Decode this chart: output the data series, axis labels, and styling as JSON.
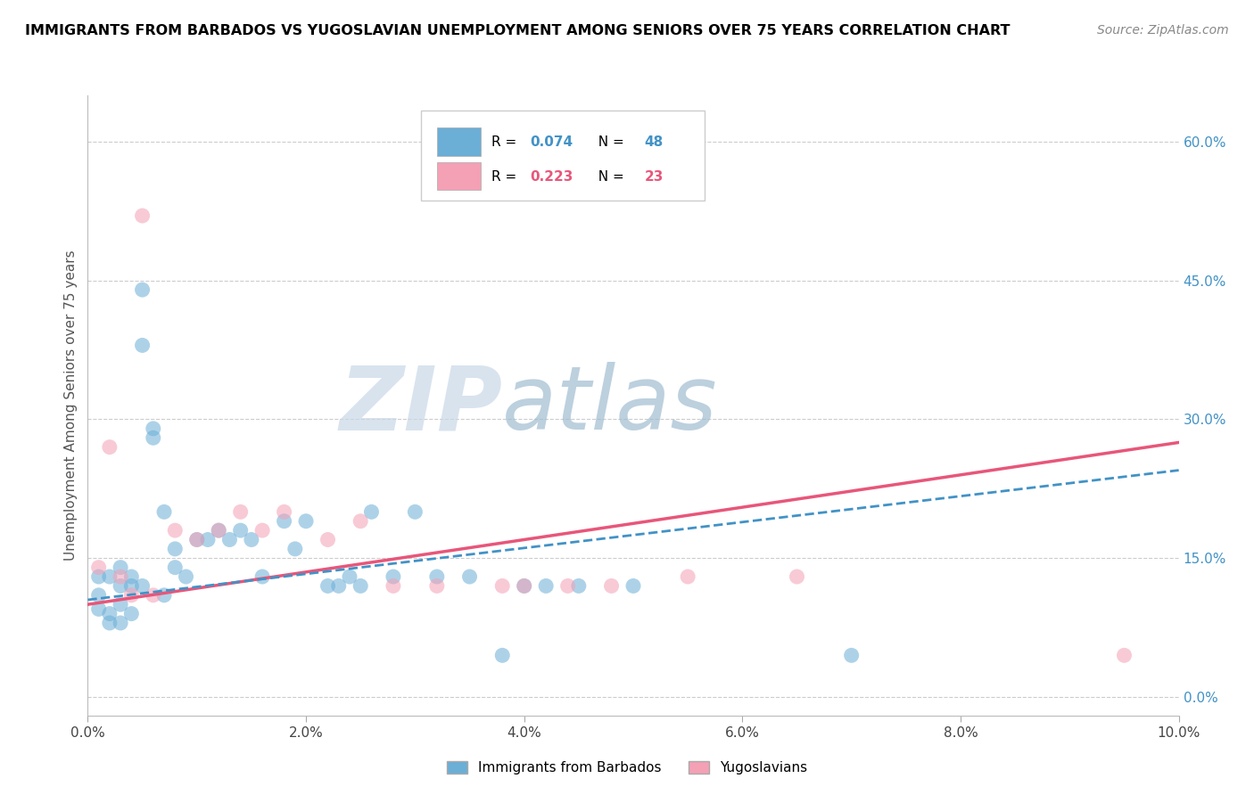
{
  "title": "IMMIGRANTS FROM BARBADOS VS YUGOSLAVIAN UNEMPLOYMENT AMONG SENIORS OVER 75 YEARS CORRELATION CHART",
  "source": "Source: ZipAtlas.com",
  "ylabel": "Unemployment Among Seniors over 75 years",
  "xlim": [
    0.0,
    0.1
  ],
  "ylim": [
    -0.02,
    0.65
  ],
  "xticks": [
    0.0,
    0.02,
    0.04,
    0.06,
    0.08,
    0.1
  ],
  "xtick_labels": [
    "0.0%",
    "2.0%",
    "4.0%",
    "6.0%",
    "8.0%",
    "10.0%"
  ],
  "yticks_right": [
    0.0,
    0.15,
    0.3,
    0.45,
    0.6
  ],
  "ytick_labels_right": [
    "0.0%",
    "15.0%",
    "30.0%",
    "45.0%",
    "60.0%"
  ],
  "color_blue": "#6baed6",
  "color_pink": "#f4a0b5",
  "color_blue_text": "#4292c6",
  "color_pink_text": "#e8567a",
  "watermark_zip": "#c8d8e8",
  "watermark_atlas": "#a0bcd0",
  "blue_scatter_x": [
    0.001,
    0.001,
    0.001,
    0.002,
    0.002,
    0.002,
    0.003,
    0.003,
    0.003,
    0.003,
    0.004,
    0.004,
    0.004,
    0.005,
    0.005,
    0.005,
    0.006,
    0.006,
    0.007,
    0.007,
    0.008,
    0.008,
    0.009,
    0.01,
    0.011,
    0.012,
    0.013,
    0.014,
    0.015,
    0.016,
    0.018,
    0.019,
    0.02,
    0.022,
    0.023,
    0.024,
    0.025,
    0.026,
    0.028,
    0.03,
    0.032,
    0.035,
    0.038,
    0.04,
    0.042,
    0.045,
    0.05,
    0.07
  ],
  "blue_scatter_y": [
    0.13,
    0.11,
    0.095,
    0.13,
    0.09,
    0.08,
    0.14,
    0.12,
    0.1,
    0.08,
    0.13,
    0.12,
    0.09,
    0.44,
    0.38,
    0.12,
    0.29,
    0.28,
    0.2,
    0.11,
    0.16,
    0.14,
    0.13,
    0.17,
    0.17,
    0.18,
    0.17,
    0.18,
    0.17,
    0.13,
    0.19,
    0.16,
    0.19,
    0.12,
    0.12,
    0.13,
    0.12,
    0.2,
    0.13,
    0.2,
    0.13,
    0.13,
    0.045,
    0.12,
    0.12,
    0.12,
    0.12,
    0.045
  ],
  "pink_scatter_x": [
    0.001,
    0.002,
    0.003,
    0.004,
    0.005,
    0.006,
    0.008,
    0.01,
    0.012,
    0.014,
    0.016,
    0.018,
    0.022,
    0.025,
    0.028,
    0.032,
    0.038,
    0.04,
    0.044,
    0.048,
    0.055,
    0.065,
    0.095
  ],
  "pink_scatter_y": [
    0.14,
    0.27,
    0.13,
    0.11,
    0.52,
    0.11,
    0.18,
    0.17,
    0.18,
    0.2,
    0.18,
    0.2,
    0.17,
    0.19,
    0.12,
    0.12,
    0.12,
    0.12,
    0.12,
    0.12,
    0.13,
    0.13,
    0.045
  ],
  "blue_trend_x": [
    0.0,
    0.1
  ],
  "blue_trend_y": [
    0.105,
    0.245
  ],
  "pink_trend_x": [
    0.0,
    0.1
  ],
  "pink_trend_y": [
    0.1,
    0.275
  ],
  "marker_size": 150,
  "alpha": 0.55
}
